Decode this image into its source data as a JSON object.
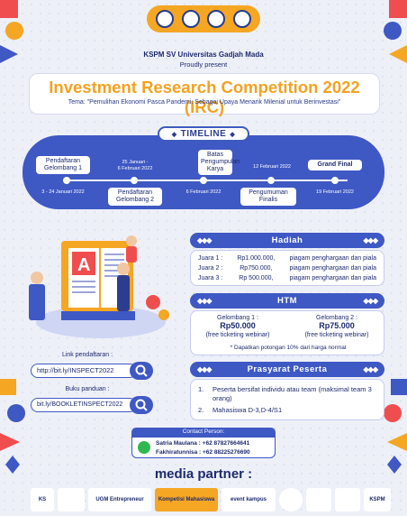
{
  "organizer": "KSPM SV Universitas Gadjah Mada",
  "proudly": "Proudly present",
  "title": "Investment Research Competition 2022 (IRC)",
  "tema": "Tema: \"Pemulihan Ekonomi Pasca Pandemi: Sebagai Upaya Menarik Milenial untuk Berinvestasi\"",
  "timeline": {
    "heading": "TIMELINE",
    "events": [
      {
        "label": "Pendaftaran Gelombang 1",
        "date": "3 - 24 Januari 2022"
      },
      {
        "label": "Pendaftaran Gelombang 2",
        "date": "25 Januari -\n6 Februari 2022"
      },
      {
        "label": "Batas Pengumpulan Karya",
        "date": "6 Februari 2022"
      },
      {
        "label": "Pengumuman Finalis",
        "date": "12 Februari 2022"
      },
      {
        "label": "Grand Final",
        "date": "19 Februari 2022"
      }
    ]
  },
  "hadiah": {
    "heading": "Hadiah",
    "rows": [
      {
        "juara": "Juara 1 :",
        "prize": "Rp1.000.000,",
        "desc": "piagam penghargaan dan piala"
      },
      {
        "juara": "Juara 2 :",
        "prize": "Rp750.000,",
        "desc": "piagam penghargaan dan piala"
      },
      {
        "juara": "Juara 3 :",
        "prize": "Rp 500.000,",
        "desc": "piagam penghargaan dan piala"
      }
    ]
  },
  "htm": {
    "heading": "HTM",
    "g1_label": "Gelombang 1 :",
    "g1_price": "Rp50.000",
    "g1_note": "(free ticketing webinar)",
    "g2_label": "Gelombang 2 :",
    "g2_price": "Rp75.000",
    "g2_note": "(free ticketing webinar)",
    "discount": "* Dapatkan potongan 10% dari harga normal"
  },
  "prasyarat": {
    "heading": "Prasyarat Peserta",
    "items": [
      {
        "n": "1.",
        "text": "Peserta bersifat individu atau team (maksimal team 3 orang)"
      },
      {
        "n": "2.",
        "text": "Mahasiswa D-3,D-4/S1"
      }
    ]
  },
  "links": {
    "pendaftaran_label": "Link pendaftaran :",
    "pendaftaran_url": "http://bit.ly/INSPECT2022",
    "panduan_label": "Buku panduan :",
    "panduan_url": "bit.ly/BOOKLETINSPECT2022"
  },
  "contact": {
    "label": "Contact Person:",
    "line1": "Satria Maulana : +62 87827664641",
    "line2": "Fakhiratunnisa : +62 88225276690"
  },
  "media_partner": "media partner :",
  "partners": [
    "KS",
    "UGM Entrepreneur",
    "Kompetisi Mahasiswa",
    "event kampus",
    "KSPM"
  ],
  "colors": {
    "primary": "#3e58c4",
    "accent": "#f3a221",
    "dark": "#1d2a6e"
  }
}
